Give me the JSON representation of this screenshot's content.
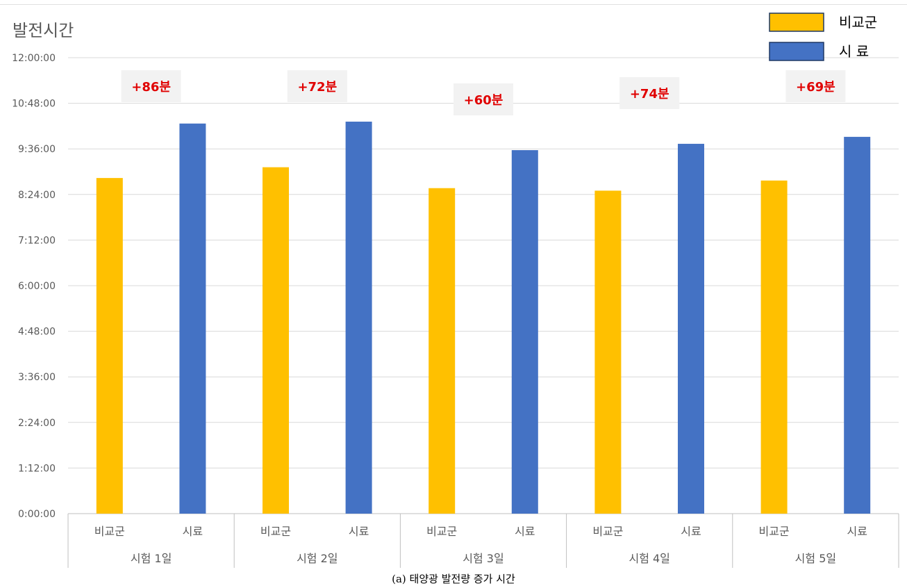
{
  "chart_data": {
    "type": "bar",
    "title": "발전시간",
    "caption": "(a) 태양광 발전량 증가 시간",
    "y_ticks": [
      "0:00:00",
      "1:12:00",
      "2:24:00",
      "3:36:00",
      "4:48:00",
      "6:00:00",
      "7:12:00",
      "8:24:00",
      "9:36:00",
      "10:48:00",
      "12:00:00"
    ],
    "ylim_minutes": [
      0,
      720
    ],
    "grid": true,
    "legend_position": "top-right",
    "legend": [
      {
        "label": "비교군",
        "color": "#FFC000"
      },
      {
        "label": "시 료",
        "color": "#4472C4"
      }
    ],
    "groups": [
      {
        "name": "시험 1일",
        "categories": [
          "비교군",
          "시료"
        ],
        "values_minutes": [
          530,
          616
        ],
        "delta_label": "+86분"
      },
      {
        "name": "시험 2일",
        "categories": [
          "비교군",
          "시료"
        ],
        "values_minutes": [
          547,
          619
        ],
        "delta_label": "+72분"
      },
      {
        "name": "시험 3일",
        "categories": [
          "비교군",
          "시료"
        ],
        "values_minutes": [
          514,
          574
        ],
        "delta_label": "+60분"
      },
      {
        "name": "시험 4일",
        "categories": [
          "비교군",
          "시료"
        ],
        "values_minutes": [
          510,
          584
        ],
        "delta_label": "+74분"
      },
      {
        "name": "시험 5일",
        "categories": [
          "비교군",
          "시료"
        ],
        "values_minutes": [
          526,
          595
        ],
        "delta_label": "+69분"
      }
    ],
    "colors": {
      "control": "#FFC000",
      "sample": "#4472C4",
      "delta_text": "#E00000",
      "delta_box": "#F2F2F2"
    }
  }
}
